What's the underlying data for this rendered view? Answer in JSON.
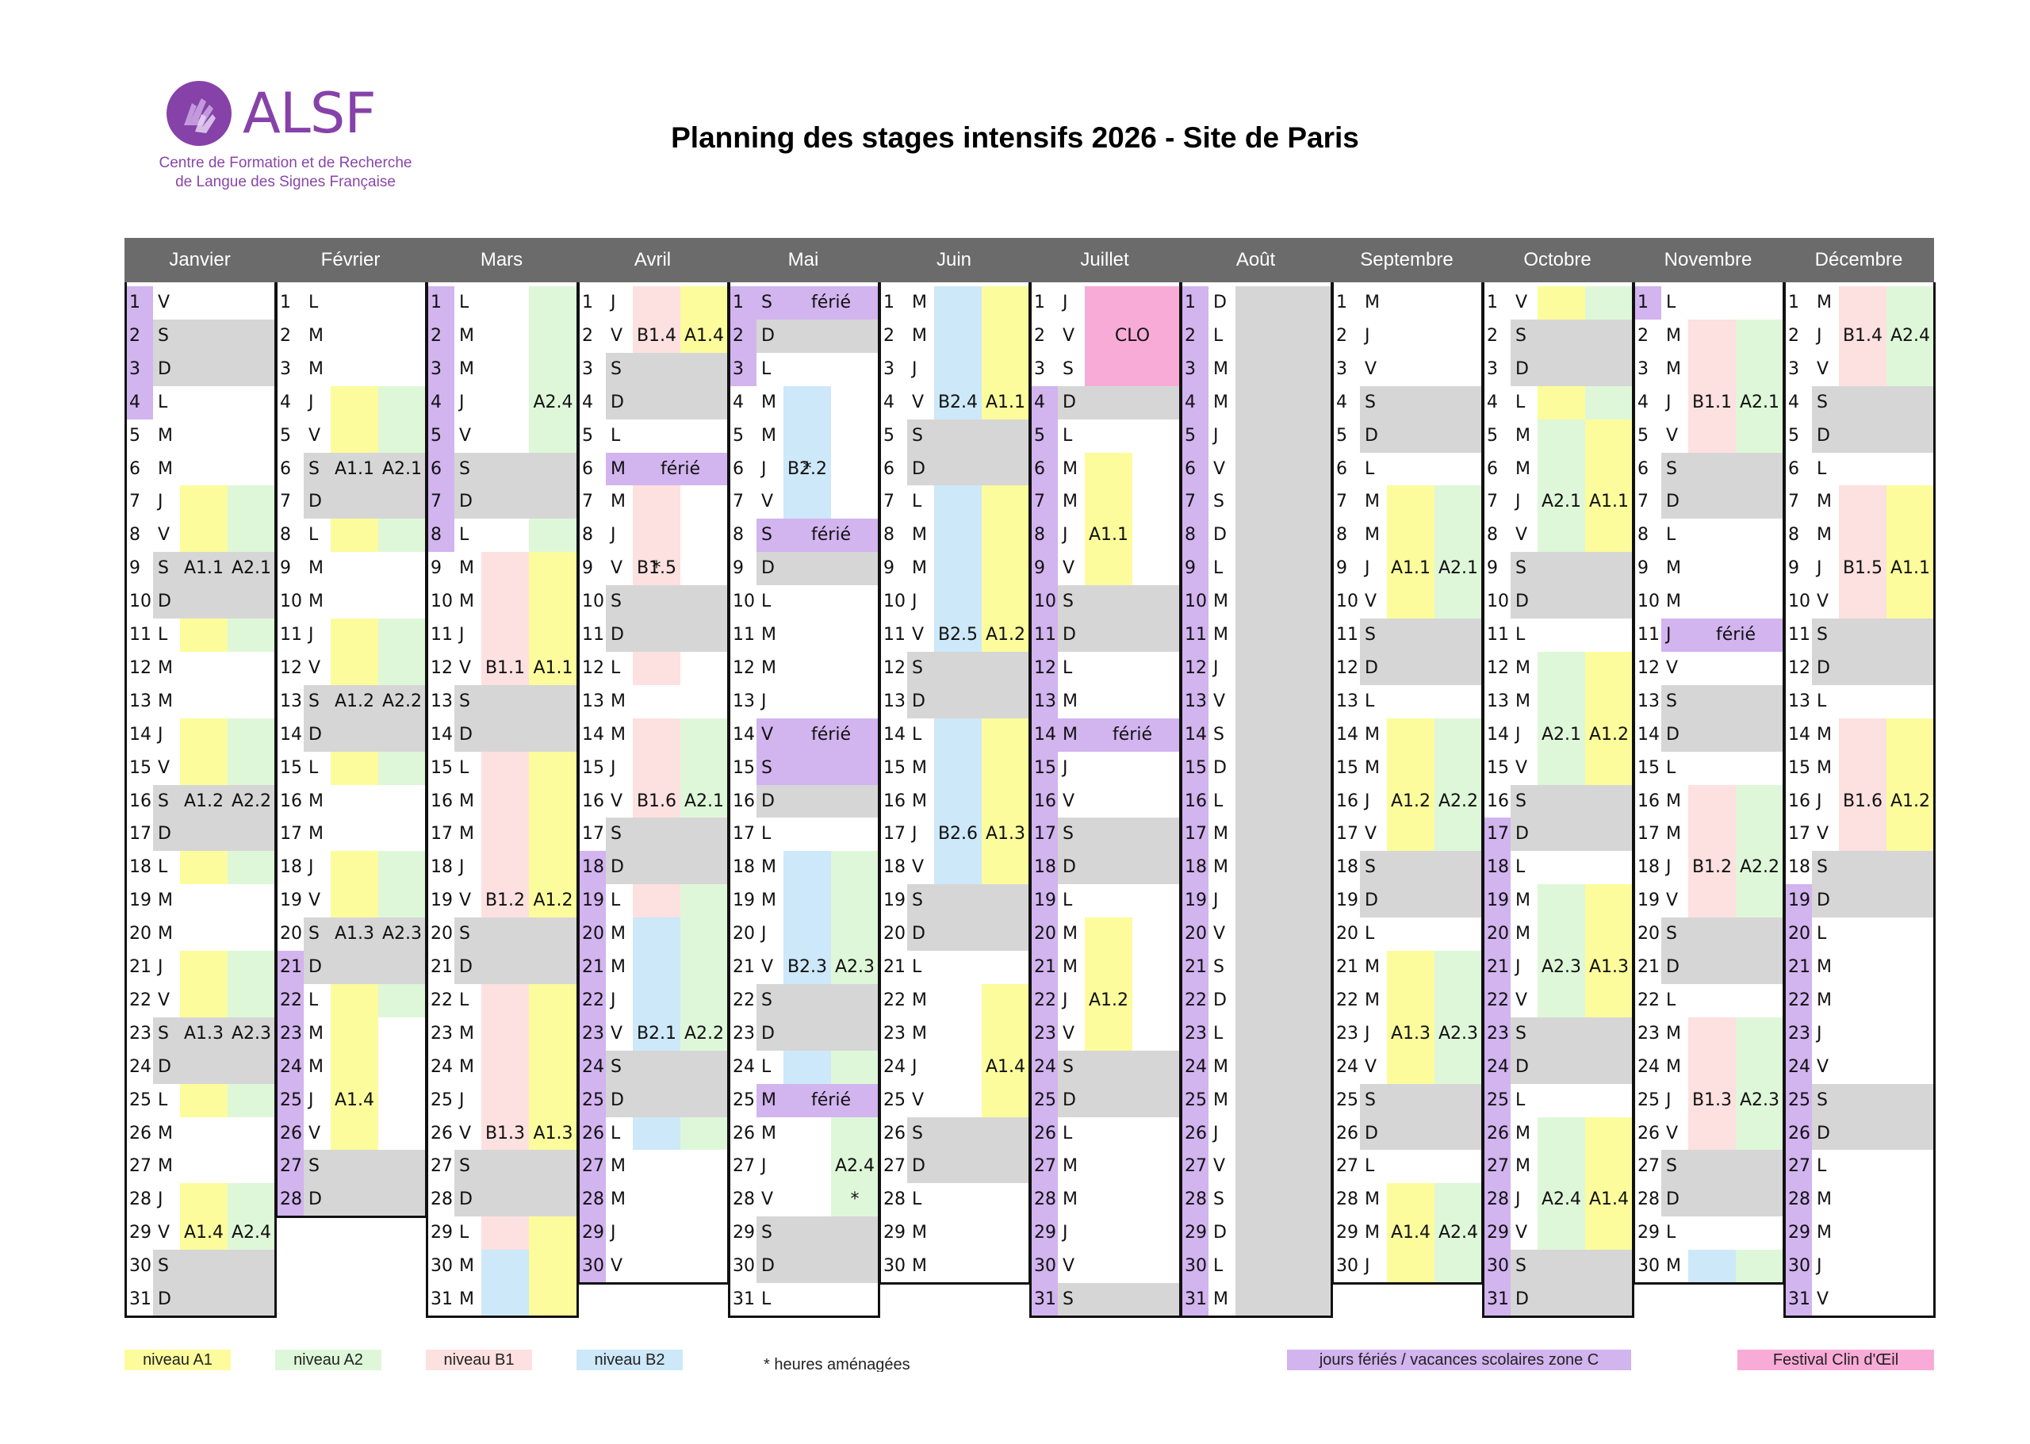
{
  "logo": {
    "name": "ALSF",
    "sub1": "Centre de Formation et de Recherche",
    "sub2": "de Langue des Signes Française"
  },
  "title": "Planning des stages intensifs 2026 - Site de Paris",
  "colors": {
    "A1": "#fcfc9c",
    "A2": "#dff7d9",
    "B1": "#fde0e0",
    "B2": "#cde8f8",
    "hol": "#d2b4ef",
    "we": "#d6d6d6",
    "clo": "#f9abd7",
    "white": "#ffffff"
  },
  "months": [
    {
      "name": "Janvier",
      "days": 31,
      "start": 4,
      "hol": [
        [
          1,
          4
        ]
      ],
      "sessions": [
        {
          "s": 7,
          "e": 11,
          "a": "A1.1",
          "b": "A2.1"
        },
        {
          "s": 14,
          "e": 18,
          "a": "A1.2",
          "b": "A2.2"
        },
        {
          "s": 21,
          "e": 25,
          "a": "A1.3",
          "b": "A2.3"
        },
        {
          "s": 28,
          "e": 30,
          "a": "A1.4",
          "b": "A2.4"
        }
      ],
      "notes": []
    },
    {
      "name": "Février",
      "days": 28,
      "start": 0,
      "hol": [
        [
          21,
          28
        ]
      ],
      "sessions": [
        {
          "s": 4,
          "e": 8,
          "a": "A1.1",
          "b": "A2.1"
        },
        {
          "s": 11,
          "e": 15,
          "a": "A1.2",
          "b": "A2.2"
        },
        {
          "s": 18,
          "e": 22,
          "a": "A1.3",
          "b": "A2.3"
        },
        {
          "s": 23,
          "e": 27,
          "a": "A1.4",
          "b": ""
        }
      ],
      "notes": []
    },
    {
      "name": "Mars",
      "days": 31,
      "start": 0,
      "hol": [
        [
          1,
          8
        ]
      ],
      "sessions": [
        {
          "s": 1,
          "e": 8,
          "a": "",
          "b": "A2.4"
        },
        {
          "s": 9,
          "e": 15,
          "a": "B1.1",
          "b": "A1.1"
        },
        {
          "s": 16,
          "e": 22,
          "a": "B1.2",
          "b": "A1.2"
        },
        {
          "s": 23,
          "e": 29,
          "a": "B1.3",
          "b": "A1.3"
        },
        {
          "s": 30,
          "e": 31,
          "a": "",
          "b": "",
          "ac": "B2",
          "bc": "A1"
        }
      ],
      "notes": []
    },
    {
      "name": "Avril",
      "days": 30,
      "start": 3,
      "hol": [
        [
          18,
          30
        ]
      ],
      "sessions": [
        {
          "s": 1,
          "e": 3,
          "a": "B1.4",
          "b": "A1.4"
        },
        {
          "s": 7,
          "e": 12,
          "a": "B1.5",
          "b": ""
        },
        {
          "s": 14,
          "e": 19,
          "a": "B1.6",
          "b": "A2.1"
        },
        {
          "s": 20,
          "e": 26,
          "a": "B2.1",
          "b": "A2.2"
        }
      ],
      "notes": [
        {
          "d": 9,
          "t": "*",
          "col": "a"
        }
      ],
      "bands": [
        {
          "d": 6,
          "t": "férié"
        }
      ]
    },
    {
      "name": "Mai",
      "days": 31,
      "start": 5,
      "hol": [
        [
          1,
          3
        ]
      ],
      "sessions": [
        {
          "s": 4,
          "e": 9,
          "a": "B2.2",
          "b": ""
        },
        {
          "s": 18,
          "e": 24,
          "a": "B2.3",
          "b": "A2.3"
        },
        {
          "s": 26,
          "e": 29,
          "a": "",
          "b": "A2.4"
        }
      ],
      "notes": [
        {
          "d": 6,
          "t": "*",
          "col": "a"
        },
        {
          "d": 28,
          "t": "*",
          "col": "b"
        }
      ],
      "bands": [
        {
          "d": 1,
          "t": "férié"
        },
        {
          "d": 8,
          "t": "férié"
        },
        {
          "d": 14,
          "t": "férié"
        },
        {
          "d": 15,
          "t": ""
        },
        {
          "d": 25,
          "t": "férié"
        }
      ]
    },
    {
      "name": "Juin",
      "days": 30,
      "start": 1,
      "hol": [],
      "sessions": [
        {
          "s": 1,
          "e": 7,
          "a": "B2.4",
          "b": "A1.1"
        },
        {
          "s": 8,
          "e": 14,
          "a": "B2.5",
          "b": "A1.2"
        },
        {
          "s": 15,
          "e": 20,
          "a": "B2.6",
          "b": "A1.3"
        },
        {
          "s": 22,
          "e": 26,
          "a": "",
          "b": "A1.4"
        }
      ],
      "notes": []
    },
    {
      "name": "Juillet",
      "days": 31,
      "start": 3,
      "hol": [
        [
          4,
          31
        ]
      ],
      "sessions": [
        {
          "s": 6,
          "e": 10,
          "a": "A1.1",
          "b": ""
        },
        {
          "s": 20,
          "e": 24,
          "a": "A1.2",
          "b": ""
        }
      ],
      "notes": [],
      "bands": [
        {
          "d": 14,
          "t": "férié"
        }
      ],
      "clo": {
        "s": 1,
        "e": 3,
        "t": "CLO"
      }
    },
    {
      "name": "Août",
      "days": 31,
      "start": 6,
      "hol": [
        [
          1,
          31
        ]
      ],
      "sessions": [],
      "notes": []
    },
    {
      "name": "Septembre",
      "days": 30,
      "start": 2,
      "hol": [],
      "sessions": [
        {
          "s": 7,
          "e": 11,
          "a": "A1.1",
          "b": "A2.1"
        },
        {
          "s": 14,
          "e": 18,
          "a": "A1.2",
          "b": "A2.2"
        },
        {
          "s": 21,
          "e": 25,
          "a": "A1.3",
          "b": "A2.3"
        },
        {
          "s": 28,
          "e": 30,
          "a": "A1.4",
          "b": "A2.4"
        }
      ],
      "notes": []
    },
    {
      "name": "Octobre",
      "days": 31,
      "start": 4,
      "hol": [
        [
          17,
          31
        ]
      ],
      "sessions": [
        {
          "s": 1,
          "e": 4,
          "a": "",
          "b": "",
          "ac": "A1",
          "bc": "A2"
        },
        {
          "s": 5,
          "e": 9,
          "a": "A2.1",
          "b": "A1.1"
        },
        {
          "s": 12,
          "e": 16,
          "a": "A2.1",
          "b": "A1.2"
        },
        {
          "s": 19,
          "e": 23,
          "a": "A2.3",
          "b": "A1.3"
        },
        {
          "s": 26,
          "e": 30,
          "a": "A2.4",
          "b": "A1.4"
        }
      ],
      "notes": []
    },
    {
      "name": "Novembre",
      "days": 30,
      "start": 0,
      "hol": [
        [
          1,
          1
        ]
      ],
      "sessions": [
        {
          "s": 2,
          "e": 6,
          "a": "B1.1",
          "b": "A2.1"
        },
        {
          "s": 16,
          "e": 20,
          "a": "B1.2",
          "b": "A2.2"
        },
        {
          "s": 23,
          "e": 27,
          "a": "B1.3",
          "b": "A2.3"
        },
        {
          "s": 30,
          "e": 30,
          "a": "",
          "b": "",
          "ac": "B2",
          "bc": "A2"
        }
      ],
      "notes": [],
      "bands": [
        {
          "d": 11,
          "t": "férié"
        }
      ]
    },
    {
      "name": "Décembre",
      "days": 31,
      "start": 2,
      "hol": [
        [
          19,
          31
        ]
      ],
      "sessions": [
        {
          "s": 1,
          "e": 4,
          "a": "B1.4",
          "b": "A2.4"
        },
        {
          "s": 7,
          "e": 11,
          "a": "B1.5",
          "b": "A1.1"
        },
        {
          "s": 14,
          "e": 18,
          "a": "B1.6",
          "b": "A1.2"
        }
      ],
      "notes": []
    }
  ],
  "legend": [
    {
      "label": "niveau A1",
      "color": "A1"
    },
    {
      "label": "niveau A2",
      "color": "A2"
    },
    {
      "label": "niveau B1",
      "color": "B1"
    },
    {
      "label": "niveau B2",
      "color": "B2"
    }
  ],
  "legend_note": "* heures aménagées",
  "legend_hol": "jours fériés / vacances scolaires zone C",
  "legend_clo": "Festival Clin d'Œil",
  "day_letters": [
    "L",
    "M",
    "M",
    "J",
    "V",
    "S",
    "D"
  ]
}
